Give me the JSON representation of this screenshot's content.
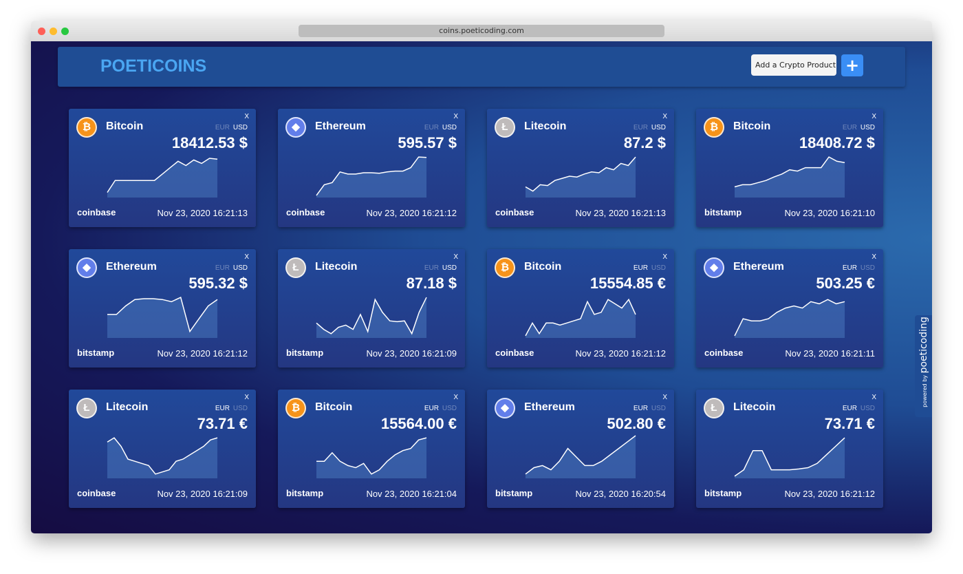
{
  "browser": {
    "url": "coins.poeticoding.com"
  },
  "header": {
    "title": "POETICOINS",
    "select": "Add a Crypto Product",
    "add_button": "+"
  },
  "powered_by": {
    "label": "powered by",
    "brand": "poeticoding"
  },
  "cards": [
    {
      "icon": "₿",
      "icon_color": "#f7931a",
      "name": "Bitcoin",
      "close": "X",
      "currencies": [
        "EUR",
        "USD"
      ],
      "active": "USD",
      "price": "18412.53 $",
      "exchange": "coinbase",
      "date": "Nov 23, 2020 16:21:13",
      "spark": [
        12,
        40,
        40,
        40,
        40,
        40,
        40,
        55,
        70,
        85,
        75,
        88,
        80,
        92,
        90
      ]
    },
    {
      "icon": "◆",
      "icon_color": "#627eea",
      "name": "Ethereum",
      "close": "X",
      "currencies": [
        "EUR",
        "USD"
      ],
      "active": "USD",
      "price": "595.57 $",
      "exchange": "coinbase",
      "date": "Nov 23, 2020 16:21:12",
      "spark": [
        5,
        30,
        35,
        60,
        55,
        55,
        58,
        58,
        57,
        60,
        62,
        62,
        70,
        95,
        94
      ]
    },
    {
      "icon": "Ł",
      "icon_color": "#bfbbbb",
      "name": "Litecoin",
      "close": "X",
      "currencies": [
        "EUR",
        "USD"
      ],
      "active": "USD",
      "price": "87.2 $",
      "exchange": "coinbase",
      "date": "Nov 23, 2020 16:21:13",
      "spark": [
        25,
        15,
        30,
        28,
        40,
        45,
        50,
        48,
        55,
        60,
        58,
        70,
        65,
        80,
        75,
        95
      ]
    },
    {
      "icon": "₿",
      "icon_color": "#f7931a",
      "name": "Bitcoin",
      "close": "X",
      "currencies": [
        "EUR",
        "USD"
      ],
      "active": "USD",
      "price": "18408.72 $",
      "exchange": "bitstamp",
      "date": "Nov 23, 2020 16:21:10",
      "spark": [
        25,
        30,
        30,
        35,
        40,
        48,
        55,
        65,
        62,
        70,
        70,
        70,
        95,
        85,
        82
      ]
    },
    {
      "icon": "◆",
      "icon_color": "#627eea",
      "name": "Ethereum",
      "close": "X",
      "currencies": [
        "EUR",
        "USD"
      ],
      "active": "USD",
      "price": "595.32 $",
      "exchange": "bitstamp",
      "date": "Nov 23, 2020 16:21:12",
      "spark": [
        55,
        55,
        75,
        90,
        92,
        92,
        90,
        85,
        95,
        15,
        45,
        75,
        90
      ]
    },
    {
      "icon": "Ł",
      "icon_color": "#bfbbbb",
      "name": "Litecoin",
      "close": "X",
      "currencies": [
        "EUR",
        "USD"
      ],
      "active": "USD",
      "price": "87.18 $",
      "exchange": "bitstamp",
      "date": "Nov 23, 2020 16:21:09",
      "spark": [
        35,
        20,
        10,
        25,
        30,
        20,
        55,
        15,
        90,
        60,
        40,
        38,
        40,
        10,
        60,
        95
      ]
    },
    {
      "icon": "₿",
      "icon_color": "#f7931a",
      "name": "Bitcoin",
      "close": "X",
      "currencies": [
        "EUR",
        "USD"
      ],
      "active": "EUR",
      "price": "15554.85 €",
      "exchange": "coinbase",
      "date": "Nov 23, 2020 16:21:12",
      "spark": [
        5,
        35,
        10,
        35,
        35,
        30,
        35,
        40,
        45,
        85,
        55,
        60,
        90,
        80,
        70,
        90,
        55
      ]
    },
    {
      "icon": "◆",
      "icon_color": "#627eea",
      "name": "Ethereum",
      "close": "X",
      "currencies": [
        "EUR",
        "USD"
      ],
      "active": "EUR",
      "price": "503.25 €",
      "exchange": "coinbase",
      "date": "Nov 23, 2020 16:21:11",
      "spark": [
        5,
        45,
        40,
        40,
        45,
        60,
        70,
        75,
        70,
        85,
        80,
        90,
        80,
        85
      ]
    },
    {
      "icon": "Ł",
      "icon_color": "#bfbbbb",
      "name": "Litecoin",
      "close": "X",
      "currencies": [
        "EUR",
        "USD"
      ],
      "active": "EUR",
      "price": "73.71 €",
      "exchange": "coinbase",
      "date": "Nov 23, 2020 16:21:09",
      "spark": [
        85,
        95,
        75,
        45,
        40,
        35,
        30,
        10,
        15,
        20,
        40,
        45,
        55,
        65,
        75,
        90,
        95
      ]
    },
    {
      "icon": "₿",
      "icon_color": "#f7931a",
      "name": "Bitcoin",
      "close": "X",
      "currencies": [
        "EUR",
        "USD"
      ],
      "active": "EUR",
      "price": "15564.00 €",
      "exchange": "bitstamp",
      "date": "Nov 23, 2020 16:21:04",
      "spark": [
        40,
        40,
        60,
        40,
        30,
        25,
        35,
        10,
        20,
        40,
        55,
        65,
        70,
        90,
        95
      ]
    },
    {
      "icon": "◆",
      "icon_color": "#627eea",
      "name": "Ethereum",
      "close": "X",
      "currencies": [
        "EUR",
        "USD"
      ],
      "active": "EUR",
      "price": "502.80 €",
      "exchange": "bitstamp",
      "date": "Nov 23, 2020 16:20:54",
      "spark": [
        10,
        25,
        30,
        20,
        40,
        70,
        50,
        30,
        30,
        40,
        55,
        70,
        85,
        100
      ]
    },
    {
      "icon": "Ł",
      "icon_color": "#bfbbbb",
      "name": "Litecoin",
      "close": "X",
      "currencies": [
        "EUR",
        "USD"
      ],
      "active": "EUR",
      "price": "73.71 €",
      "exchange": "bitstamp",
      "date": "Nov 23, 2020 16:21:12",
      "spark": [
        5,
        20,
        65,
        65,
        20,
        20,
        20,
        22,
        25,
        35,
        55,
        75,
        95
      ]
    }
  ]
}
